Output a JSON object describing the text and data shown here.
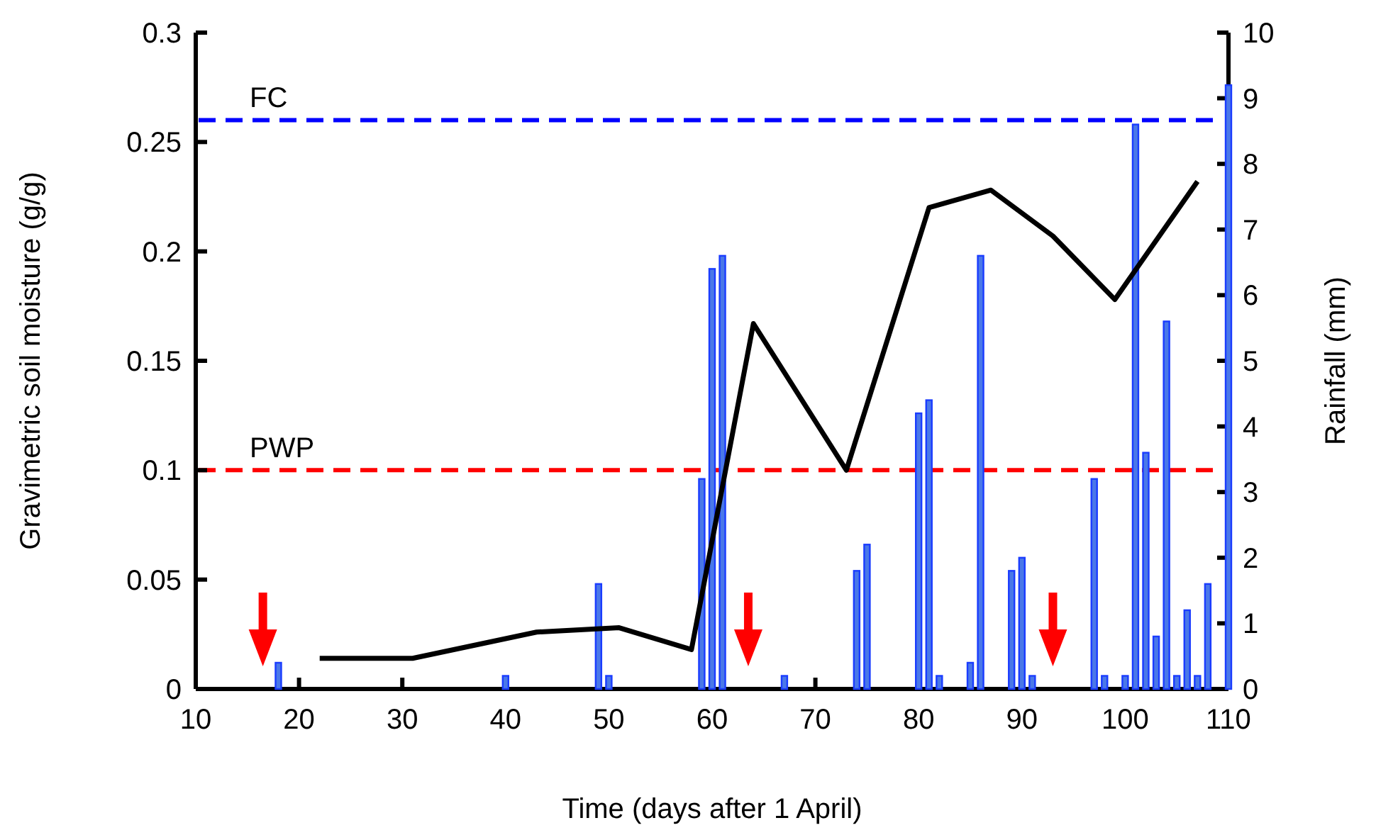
{
  "chart_data": {
    "type": "line",
    "xlabel": "Time (days after 1 April)",
    "ylabel": "Gravimetric soil moisture (g/g)",
    "y2label": "Rainfall (mm)",
    "xlim": [
      10,
      110
    ],
    "xticks": [
      10,
      20,
      30,
      40,
      50,
      60,
      70,
      80,
      90,
      100,
      110
    ],
    "ylim": [
      0,
      0.3
    ],
    "yticks": [
      0,
      0.05,
      0.1,
      0.15,
      0.2,
      0.25,
      0.3
    ],
    "y2lim": [
      0,
      10
    ],
    "y2ticks": [
      0,
      1,
      2,
      3,
      4,
      5,
      6,
      7,
      8,
      9,
      10
    ],
    "grid": false,
    "marker": "none",
    "line_style": "solid",
    "series": [
      {
        "color": "#000000",
        "x": [
          22,
          31,
          43,
          51,
          58,
          64,
          73,
          81,
          87,
          93,
          99,
          107
        ],
        "values": [
          0.014,
          0.014,
          0.026,
          0.028,
          0.018,
          0.167,
          0.1,
          0.22,
          0.228,
          0.207,
          0.178,
          0.232
        ]
      },
      {
        "type": "bar",
        "axis": "y2",
        "color": "#1a3cff",
        "x": [
          18,
          40,
          49,
          50,
          59,
          60,
          61,
          67,
          74,
          75,
          80,
          81,
          82,
          85,
          86,
          89,
          90,
          91,
          97,
          98,
          100,
          101,
          102,
          103,
          104,
          105,
          106,
          107,
          108,
          110
        ],
        "values": [
          0.4,
          0.2,
          1.6,
          0.2,
          3.2,
          6.4,
          6.6,
          0.2,
          1.8,
          2.2,
          4.2,
          4.4,
          0.2,
          0.4,
          6.6,
          1.8,
          2.0,
          0.2,
          3.2,
          0.2,
          0.2,
          8.6,
          3.6,
          0.8,
          5.6,
          0.2,
          1.2,
          0.2,
          1.6,
          9.2
        ]
      }
    ],
    "ref_lines": [
      {
        "axis": "y",
        "value": 0.26,
        "label": "FC",
        "color": "#0000ff",
        "line_style": "dashed"
      },
      {
        "axis": "y",
        "value": 0.1,
        "label": "PWP",
        "color": "#ff0000",
        "line_style": "dashed"
      }
    ]
  }
}
